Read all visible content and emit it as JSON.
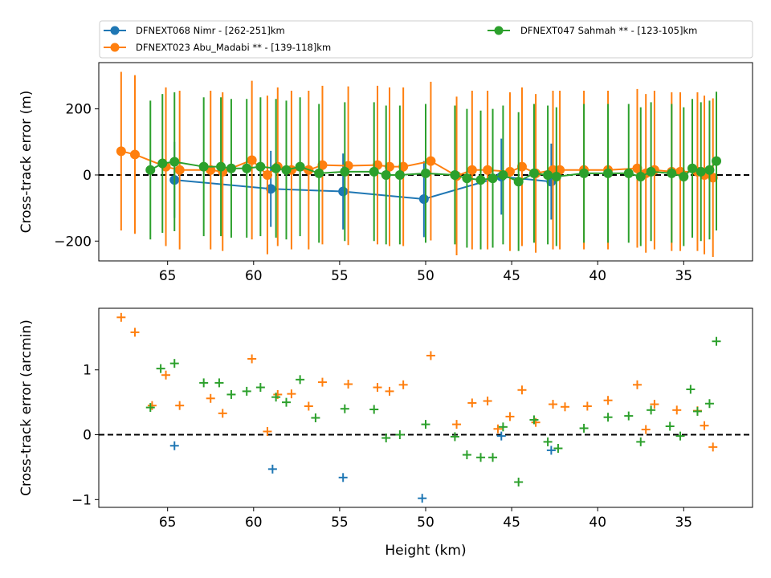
{
  "figure": {
    "legend": [
      {
        "label": "DFNEXT068 Nimr - [262-251]km",
        "color": "#1f77b4"
      },
      {
        "label": "DFNEXT023 Abu_Madabi **  - [139-118]km",
        "color": "#ff7f0e"
      },
      {
        "label": "DFNEXT047 Sahmah **  - [123-105]km",
        "color": "#2ca02c"
      }
    ]
  },
  "chart_data": [
    {
      "type": "line",
      "subtype": "errorbar",
      "xlabel": "",
      "ylabel": "Cross-track error (m)",
      "xlim": [
        69,
        31
      ],
      "ylim": [
        -260,
        340
      ],
      "xticks": [
        65,
        60,
        55,
        50,
        45,
        40,
        35
      ],
      "yticks": [
        -200,
        0,
        200
      ],
      "reference_line": 0,
      "series": [
        {
          "name": "DFNEXT068 Nimr - [262-251]km",
          "color": "#1f77b4",
          "x": [
            64.6,
            59.0,
            54.8,
            50.1,
            45.6,
            42.7
          ],
          "y": [
            -15,
            -42,
            -50,
            -73,
            -5,
            -20
          ],
          "err": [
            115,
            115,
            115,
            115,
            115,
            115
          ]
        },
        {
          "name": "DFNEXT023 Abu_Madabi **  - [139-118]km",
          "color": "#ff7f0e",
          "x": [
            67.7,
            66.9,
            65.1,
            64.3,
            62.5,
            61.8,
            60.1,
            59.2,
            58.6,
            57.8,
            56.8,
            56.0,
            54.5,
            52.8,
            52.1,
            51.3,
            49.7,
            48.2,
            47.3,
            46.4,
            45.1,
            44.4,
            43.6,
            42.6,
            42.2,
            40.8,
            39.4,
            37.7,
            37.2,
            36.7,
            35.7,
            35.2,
            34.2,
            33.8,
            33.3
          ],
          "y": [
            72,
            62,
            25,
            15,
            15,
            10,
            45,
            0,
            25,
            15,
            15,
            30,
            28,
            30,
            25,
            25,
            42,
            -3,
            15,
            15,
            10,
            25,
            5,
            15,
            15,
            15,
            15,
            20,
            5,
            15,
            10,
            10,
            10,
            0,
            -8
          ],
          "err": [
            240,
            240,
            240,
            240,
            240,
            240,
            240,
            240,
            240,
            240,
            240,
            240,
            240,
            240,
            240,
            240,
            240,
            240,
            240,
            240,
            240,
            240,
            240,
            240,
            240,
            240,
            240,
            240,
            240,
            240,
            240,
            240,
            240,
            240,
            240
          ]
        },
        {
          "name": "DFNEXT047 Sahmah **  - [123-105]km",
          "color": "#2ca02c",
          "x": [
            66.0,
            65.3,
            64.6,
            62.9,
            61.9,
            61.3,
            60.4,
            59.6,
            58.7,
            58.1,
            57.3,
            56.2,
            54.7,
            53.0,
            52.3,
            51.5,
            50.0,
            48.3,
            47.6,
            46.8,
            46.1,
            45.5,
            44.6,
            43.7,
            42.9,
            42.4,
            40.8,
            39.4,
            38.2,
            37.5,
            36.9,
            35.7,
            35.0,
            34.5,
            34.0,
            33.5,
            33.1
          ],
          "y": [
            15,
            35,
            40,
            25,
            25,
            20,
            20,
            25,
            20,
            15,
            25,
            5,
            10,
            10,
            0,
            0,
            5,
            0,
            -10,
            -15,
            -10,
            0,
            -20,
            5,
            0,
            -5,
            5,
            5,
            5,
            -5,
            10,
            5,
            -5,
            20,
            10,
            15,
            42
          ],
          "err": [
            210,
            210,
            210,
            210,
            210,
            210,
            210,
            210,
            210,
            210,
            210,
            210,
            210,
            210,
            210,
            210,
            210,
            210,
            210,
            210,
            210,
            210,
            210,
            210,
            210,
            210,
            210,
            210,
            210,
            210,
            210,
            210,
            210,
            210,
            210,
            210,
            210
          ]
        }
      ]
    },
    {
      "type": "scatter",
      "marker": "+",
      "xlabel": "Height (km)",
      "ylabel": "Cross-track error (arcmin)",
      "xlim": [
        69,
        31
      ],
      "ylim": [
        -1.12,
        1.95
      ],
      "xticks": [
        65,
        60,
        55,
        50,
        45,
        40,
        35
      ],
      "yticks": [
        -1,
        0,
        1
      ],
      "reference_line": 0,
      "series": [
        {
          "name": "DFNEXT068 Nimr - [262-251]km",
          "color": "#1f77b4",
          "x": [
            64.6,
            58.9,
            54.8,
            50.2,
            45.6,
            42.7
          ],
          "y": [
            -0.17,
            -0.53,
            -0.66,
            -0.98,
            -0.02,
            -0.24
          ]
        },
        {
          "name": "DFNEXT023 Abu_Madabi **  - [139-118]km",
          "color": "#ff7f0e",
          "x": [
            67.7,
            66.9,
            65.9,
            65.1,
            64.3,
            62.5,
            61.8,
            60.1,
            59.2,
            58.6,
            57.8,
            56.8,
            56.0,
            54.5,
            52.8,
            52.1,
            51.3,
            49.7,
            48.2,
            47.3,
            46.4,
            45.8,
            45.1,
            44.4,
            43.6,
            42.6,
            41.9,
            40.6,
            39.4,
            37.7,
            37.2,
            36.7,
            35.4,
            34.2,
            33.8,
            33.3
          ],
          "y": [
            1.81,
            1.58,
            0.45,
            0.92,
            0.45,
            0.56,
            0.33,
            1.17,
            0.05,
            0.62,
            0.63,
            0.44,
            0.81,
            0.78,
            0.73,
            0.67,
            0.77,
            1.22,
            0.16,
            0.49,
            0.52,
            0.09,
            0.28,
            0.69,
            0.19,
            0.47,
            0.43,
            0.44,
            0.53,
            0.77,
            0.08,
            0.47,
            0.38,
            0.37,
            0.14,
            -0.19
          ]
        },
        {
          "name": "DFNEXT047 Sahmah **  - [123-105]km",
          "color": "#2ca02c",
          "x": [
            66.0,
            65.4,
            64.6,
            62.9,
            62.0,
            61.3,
            60.4,
            59.6,
            58.7,
            58.1,
            57.3,
            56.4,
            54.7,
            53.0,
            52.3,
            51.5,
            50.0,
            48.3,
            47.6,
            46.8,
            46.1,
            45.5,
            44.6,
            43.7,
            42.9,
            42.3,
            40.8,
            39.4,
            38.2,
            37.5,
            36.9,
            35.8,
            35.2,
            34.6,
            34.2,
            33.5,
            33.1
          ],
          "y": [
            0.42,
            1.02,
            1.1,
            0.8,
            0.8,
            0.62,
            0.67,
            0.73,
            0.58,
            0.5,
            0.85,
            0.26,
            0.4,
            0.39,
            -0.05,
            0.0,
            0.16,
            -0.03,
            -0.31,
            -0.35,
            -0.35,
            0.12,
            -0.73,
            0.23,
            -0.11,
            -0.21,
            0.1,
            0.27,
            0.29,
            -0.11,
            0.38,
            0.13,
            -0.02,
            0.7,
            0.36,
            0.48,
            1.44
          ]
        }
      ]
    }
  ]
}
